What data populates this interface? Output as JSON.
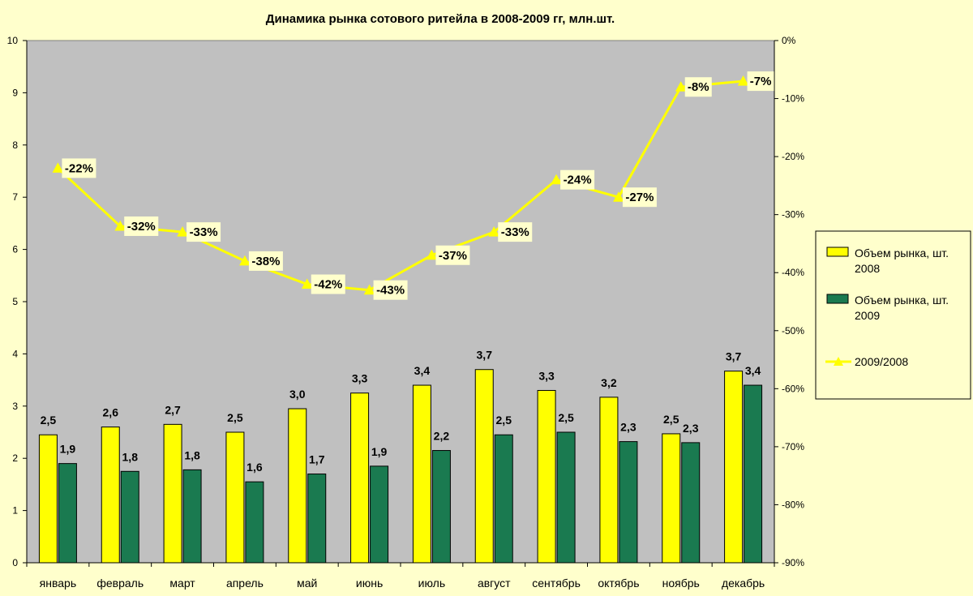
{
  "chart_data": {
    "type": "bar",
    "title": "Динамика рынка сотового ритейла в 2008-2009 гг, млн.шт.",
    "categories": [
      "январь",
      "февраль",
      "март",
      "апрель",
      "май",
      "июнь",
      "июль",
      "август",
      "сентябрь",
      "октябрь",
      "ноябрь",
      "декабрь"
    ],
    "series": [
      {
        "name": "Объем рынка, шт. 2008",
        "type": "bar",
        "axis": "left",
        "color": "#ffff00",
        "values": [
          2.45,
          2.6,
          2.65,
          2.5,
          2.95,
          3.25,
          3.4,
          3.7,
          3.3,
          3.17,
          2.47,
          3.67
        ],
        "labels": [
          "2,5",
          "2,6",
          "2,7",
          "2,5",
          "3,0",
          "3,3",
          "3,4",
          "3,7",
          "3,3",
          "3,2",
          "2,5",
          "3,7"
        ]
      },
      {
        "name": "Объем рынка, шт. 2009",
        "type": "bar",
        "axis": "left",
        "color": "#1a7a50",
        "values": [
          1.9,
          1.75,
          1.78,
          1.55,
          1.7,
          1.85,
          2.15,
          2.45,
          2.5,
          2.32,
          2.3,
          3.4
        ],
        "labels": [
          "1,9",
          "1,8",
          "1,8",
          "1,6",
          "1,7",
          "1,9",
          "2,2",
          "2,5",
          "2,5",
          "2,3",
          "2,3",
          "3,4"
        ]
      },
      {
        "name": "2009/2008",
        "type": "line",
        "axis": "right",
        "color": "#ffff00",
        "values": [
          -22,
          -32,
          -33,
          -38,
          -42,
          -43,
          -37,
          -33,
          -24,
          -27,
          -8,
          -7
        ],
        "labels": [
          "-22%",
          "-32%",
          "-33%",
          "-38%",
          "-42%",
          "-43%",
          "-37%",
          "-33%",
          "-24%",
          "-27%",
          "-8%",
          "-7%"
        ]
      }
    ],
    "y_left": {
      "min": 0,
      "max": 10,
      "ticks": [
        "0",
        "1",
        "2",
        "3",
        "4",
        "5",
        "6",
        "7",
        "8",
        "9",
        "10"
      ]
    },
    "y_right": {
      "min": -90,
      "max": 0,
      "ticks": [
        "-90%",
        "-80%",
        "-70%",
        "-60%",
        "-50%",
        "-40%",
        "-30%",
        "-20%",
        "-10%",
        "0%"
      ]
    },
    "plot_background": "#c0c0c0",
    "grid": false,
    "legend": {
      "position": "right",
      "entries": [
        [
          "Объем рынка, шт.",
          "2008"
        ],
        [
          "Объем рынка, шт.",
          "2009"
        ],
        [
          "2009/2008"
        ]
      ]
    }
  }
}
